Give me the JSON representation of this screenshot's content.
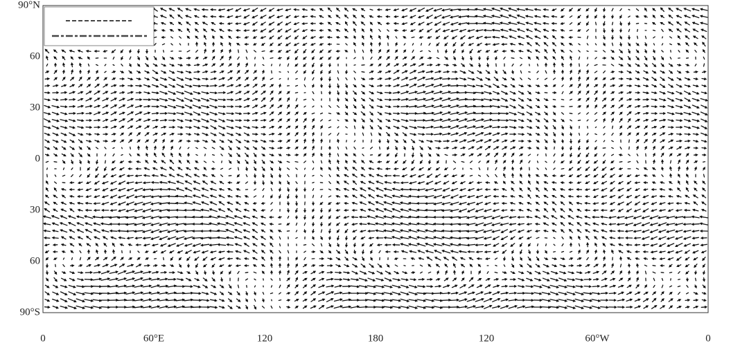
{
  "map": {
    "lat_labels": [
      "90°N",
      "60",
      "30",
      "0",
      "30",
      "60",
      "90°S"
    ],
    "lon_labels": [
      "0",
      "60°E",
      "120",
      "180",
      "120",
      "60°W",
      "0"
    ]
  }
}
